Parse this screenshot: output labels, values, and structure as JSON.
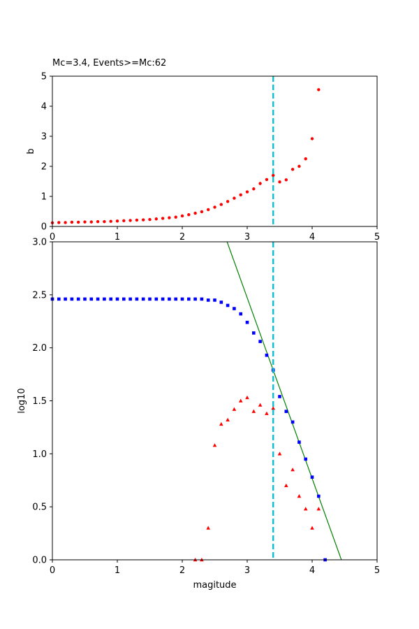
{
  "chart_data": [
    {
      "type": "scatter",
      "title": "Mc=3.4, Events>=Mc:62",
      "xlabel": "",
      "ylabel": "b",
      "xlim": [
        0,
        5
      ],
      "ylim": [
        0,
        5
      ],
      "x_ticks": [
        "0",
        "1",
        "2",
        "3",
        "4",
        "5"
      ],
      "y_ticks": [
        "0",
        "1",
        "2",
        "3",
        "4",
        "5"
      ],
      "grid": false,
      "mc_line": {
        "x": 3.4,
        "color": "#17becf",
        "style": "dashed"
      },
      "series": [
        {
          "color": "#ff0000",
          "marker": "circle",
          "x": [
            0.0,
            0.1,
            0.2,
            0.3,
            0.4,
            0.5,
            0.6,
            0.7,
            0.8,
            0.9,
            1.0,
            1.1,
            1.2,
            1.3,
            1.4,
            1.5,
            1.6,
            1.7,
            1.8,
            1.9,
            2.0,
            2.1,
            2.2,
            2.3,
            2.4,
            2.5,
            2.6,
            2.7,
            2.8,
            2.9,
            3.0,
            3.1,
            3.2,
            3.3,
            3.4,
            3.5,
            3.6,
            3.7,
            3.8,
            3.9,
            4.0,
            4.1
          ],
          "y": [
            0.12,
            0.13,
            0.13,
            0.14,
            0.14,
            0.15,
            0.15,
            0.16,
            0.16,
            0.17,
            0.18,
            0.19,
            0.2,
            0.21,
            0.22,
            0.23,
            0.25,
            0.27,
            0.29,
            0.31,
            0.35,
            0.39,
            0.44,
            0.49,
            0.56,
            0.64,
            0.73,
            0.83,
            0.94,
            1.05,
            1.15,
            1.25,
            1.43,
            1.56,
            1.7,
            1.48,
            1.55,
            1.9,
            2.0,
            2.25,
            2.92,
            4.55
          ]
        }
      ]
    },
    {
      "type": "scatter",
      "title": "",
      "xlabel": "magitude",
      "ylabel": "log10",
      "xlim": [
        0,
        5
      ],
      "ylim": [
        0,
        3
      ],
      "x_ticks": [
        "0",
        "1",
        "2",
        "3",
        "4",
        "5"
      ],
      "y_ticks": [
        "0.0",
        "0.5",
        "1.0",
        "1.5",
        "2.0",
        "2.5",
        "3.0"
      ],
      "y_tick_values": [
        0,
        0.5,
        1,
        1.5,
        2,
        2.5,
        3
      ],
      "grid": false,
      "mc_line": {
        "x": 3.4,
        "color": "#17becf",
        "style": "dashed"
      },
      "fit_line": {
        "color": "#008000",
        "x": [
          2.69,
          4.45
        ],
        "y": [
          3.0,
          0.0
        ]
      },
      "series": [
        {
          "color": "#0000ff",
          "marker": "square",
          "x": [
            0.0,
            0.1,
            0.2,
            0.3,
            0.4,
            0.5,
            0.6,
            0.7,
            0.8,
            0.9,
            1.0,
            1.1,
            1.2,
            1.3,
            1.4,
            1.5,
            1.6,
            1.7,
            1.8,
            1.9,
            2.0,
            2.1,
            2.2,
            2.3,
            2.4,
            2.5,
            2.6,
            2.7,
            2.8,
            2.9,
            3.0,
            3.1,
            3.2,
            3.3,
            3.4,
            3.5,
            3.6,
            3.7,
            3.8,
            3.9,
            4.0,
            4.1,
            4.2
          ],
          "y": [
            2.46,
            2.46,
            2.46,
            2.46,
            2.46,
            2.46,
            2.46,
            2.46,
            2.46,
            2.46,
            2.46,
            2.46,
            2.46,
            2.46,
            2.46,
            2.46,
            2.46,
            2.46,
            2.46,
            2.46,
            2.46,
            2.46,
            2.46,
            2.46,
            2.45,
            2.45,
            2.43,
            2.4,
            2.37,
            2.32,
            2.24,
            2.14,
            2.06,
            1.93,
            1.79,
            1.54,
            1.4,
            1.3,
            1.11,
            0.95,
            0.78,
            0.6,
            0.0
          ]
        },
        {
          "color": "#ff0000",
          "marker": "triangle",
          "x": [
            2.2,
            2.3,
            2.4,
            2.5,
            2.6,
            2.7,
            2.8,
            2.9,
            3.0,
            3.1,
            3.2,
            3.3,
            3.4,
            3.5,
            3.6,
            3.7,
            3.8,
            3.9,
            4.0,
            4.1
          ],
          "y": [
            0.0,
            0.0,
            0.3,
            1.08,
            1.28,
            1.32,
            1.42,
            1.5,
            1.53,
            1.4,
            1.46,
            1.38,
            1.43,
            1.0,
            0.7,
            0.85,
            0.6,
            0.48,
            0.3,
            0.48
          ]
        }
      ]
    }
  ]
}
